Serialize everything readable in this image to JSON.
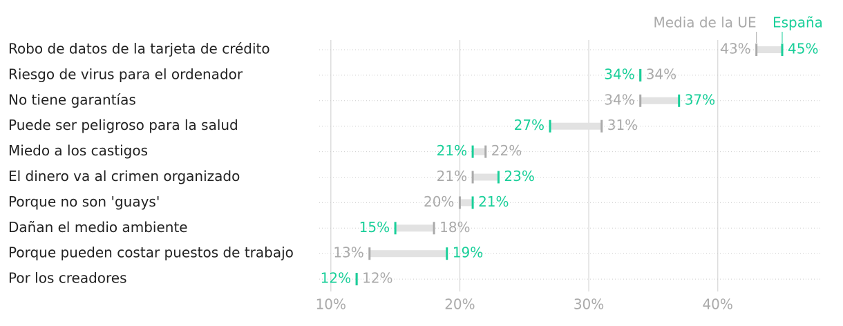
{
  "chart_data": {
    "type": "dumbbell",
    "categories": [
      "Robo de datos de la tarjeta de crédito",
      "Riesgo de virus para el ordenador",
      "No tiene garantías",
      "Puede ser peligroso para la salud",
      "Miedo a los castigos",
      "El dinero va al crimen organizado",
      "Porque no son 'guays'",
      "Dañan el medio ambiente",
      "Porque pueden costar puestos de trabajo",
      "Por los creadores"
    ],
    "series": [
      {
        "name": "Media de la UE",
        "color": "#aaaaaa",
        "values": [
          43,
          34,
          34,
          31,
          22,
          21,
          20,
          18,
          13,
          12
        ],
        "value_labels": [
          "43%",
          "34%",
          "34%",
          "31%",
          "22%",
          "21%",
          "20%",
          "18%",
          "13%",
          "12%"
        ]
      },
      {
        "name": "España",
        "color": "#19cf99",
        "values": [
          45,
          34,
          37,
          27,
          21,
          23,
          21,
          15,
          19,
          12
        ],
        "value_labels": [
          "45%",
          "34%",
          "37%",
          "27%",
          "21%",
          "23%",
          "21%",
          "15%",
          "19%",
          "12%"
        ]
      }
    ],
    "xlim": [
      9.1,
      48
    ],
    "xticks": [
      {
        "value": 10,
        "label": "10%"
      },
      {
        "value": 20,
        "label": "20%"
      },
      {
        "value": 30,
        "label": "30%"
      },
      {
        "value": 40,
        "label": "40%"
      }
    ],
    "grid": true
  }
}
